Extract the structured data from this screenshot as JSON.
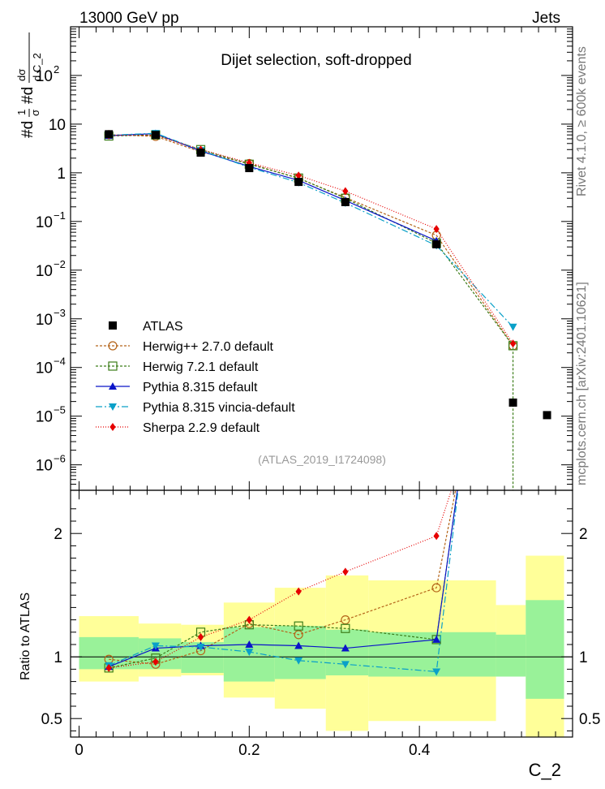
{
  "header": {
    "left": "13000 GeV pp",
    "right": "Jets",
    "side_top": "Rivet 4.1.0, ≥ 600k events",
    "side_bottom": "mcplots.cern.ch [arXiv:2401.10621]"
  },
  "chart_data": {
    "type": "line",
    "title": "Dijet selection, soft-dropped",
    "watermark": "(ATLAS_2019_I1724098)",
    "xlabel": "C_2",
    "ylabel": "#d¹⁄σ #d dσ⁄d C_2",
    "ratio_ylabel": "Ratio to ATLAS",
    "xlim": [
      -0.01,
      0.58
    ],
    "ylim": [
      3e-07,
      1000
    ],
    "ratio_ylim": [
      0.35,
      2.35
    ],
    "x_ticks": [
      0,
      0.2,
      0.4
    ],
    "x_tick_labels": [
      "0",
      "0.2",
      "0.4"
    ],
    "y_ticks": [
      {
        "v": 1e-06,
        "base": "10",
        "exp": "−6"
      },
      {
        "v": 1e-05,
        "base": "10",
        "exp": "−5"
      },
      {
        "v": 0.0001,
        "base": "10",
        "exp": "−4"
      },
      {
        "v": 0.001,
        "base": "10",
        "exp": "−3"
      },
      {
        "v": 0.01,
        "base": "10",
        "exp": "−2"
      },
      {
        "v": 0.1,
        "base": "10",
        "exp": "−1"
      },
      {
        "v": 1,
        "base": "1",
        "exp": ""
      },
      {
        "v": 10,
        "base": "10",
        "exp": ""
      },
      {
        "v": 100,
        "base": "10",
        "exp": "2"
      }
    ],
    "ratio_ticks": [
      {
        "v": 0.5,
        "label": "0.5"
      },
      {
        "v": 1,
        "label": "1"
      },
      {
        "v": 2,
        "label": "2"
      }
    ],
    "bins": [
      {
        "lo": 0.0,
        "hi": 0.07
      },
      {
        "lo": 0.07,
        "hi": 0.12
      },
      {
        "lo": 0.12,
        "hi": 0.17
      },
      {
        "lo": 0.17,
        "hi": 0.23
      },
      {
        "lo": 0.23,
        "hi": 0.29
      },
      {
        "lo": 0.29,
        "hi": 0.34
      },
      {
        "lo": 0.34,
        "hi": 0.49
      },
      {
        "lo": 0.49,
        "hi": 0.525
      },
      {
        "lo": 0.525,
        "hi": 0.57
      }
    ],
    "x": [
      0.035,
      0.09,
      0.143,
      0.2,
      0.258,
      0.313,
      0.42,
      0.51,
      0.55
    ],
    "data": {
      "name": "ATLAS",
      "values": [
        6.2,
        6.0,
        2.6,
        1.25,
        0.65,
        0.25,
        0.034,
        1.9e-05,
        1.05e-05
      ],
      "band_inner": [
        [
          0.9,
          1.16
        ],
        [
          0.9,
          1.15
        ],
        [
          0.87,
          1.12
        ],
        [
          0.8,
          1.24
        ],
        [
          0.82,
          1.25
        ],
        [
          0.85,
          1.22
        ],
        [
          0.84,
          1.2
        ],
        [
          0.84,
          1.18
        ],
        [
          0.66,
          1.46
        ]
      ],
      "band_outer": [
        [
          0.8,
          1.33
        ],
        [
          0.84,
          1.27
        ],
        [
          0.85,
          1.26
        ],
        [
          0.67,
          1.44
        ],
        [
          0.58,
          1.56
        ],
        [
          0.4,
          1.66
        ],
        [
          0.48,
          1.62
        ],
        [
          0.86,
          1.42
        ],
        [
          0.35,
          1.82
        ]
      ]
    },
    "series": [
      {
        "name": "Herwig++ 2.7.0 default",
        "color": "#b46419",
        "dash": "3,2",
        "marker": "circle-open",
        "x": [
          0.035,
          0.09,
          0.143,
          0.2,
          0.258,
          0.313,
          0.42,
          0.51
        ],
        "values": [
          6.1,
          5.6,
          2.7,
          1.55,
          0.77,
          0.31,
          0.052,
          0.00028
        ],
        "ratio": [
          0.98,
          0.94,
          1.05,
          1.27,
          1.18,
          1.3,
          1.56
        ]
      },
      {
        "name": "Herwig 7.2.1 default",
        "color": "#3c7d19",
        "dash": "3,2",
        "marker": "square-open",
        "x": [
          0.035,
          0.09,
          0.143,
          0.2,
          0.258,
          0.313,
          0.42,
          0.51,
          0.51
        ],
        "values": [
          5.7,
          6.0,
          3.0,
          1.5,
          0.78,
          0.3,
          0.036,
          0.00028,
          3e-07
        ],
        "ratio": [
          0.91,
          0.99,
          1.2,
          1.26,
          1.25,
          1.23,
          1.14
        ]
      },
      {
        "name": "Pythia 8.315 default",
        "color": "#0a14c8",
        "dash": "",
        "marker": "triangle-up",
        "x": [
          0.035,
          0.09,
          0.143,
          0.2,
          0.258,
          0.313,
          0.42
        ],
        "values": [
          5.8,
          6.4,
          2.8,
          1.35,
          0.7,
          0.27,
          0.04
        ],
        "ratio": [
          0.92,
          1.07,
          1.09,
          1.1,
          1.09,
          1.07,
          1.14
        ]
      },
      {
        "name": "Pythia 8.315 vincia-default",
        "color": "#0aa0c8",
        "dash": "8,3,2,3",
        "marker": "triangle-down",
        "x": [
          0.035,
          0.09,
          0.143,
          0.2,
          0.258,
          0.313,
          0.42,
          0.51
        ],
        "values": [
          5.9,
          6.5,
          2.9,
          1.3,
          0.63,
          0.24,
          0.032,
          0.00068
        ],
        "ratio": [
          0.93,
          1.09,
          1.08,
          1.04,
          0.97,
          0.94,
          0.88
        ]
      },
      {
        "name": "Sherpa 2.2.9 default",
        "color": "#e60000",
        "dash": "1,2",
        "marker": "diamond",
        "x": [
          0.035,
          0.09,
          0.143,
          0.2,
          0.258,
          0.313,
          0.42,
          0.51
        ],
        "values": [
          5.9,
          5.9,
          3.0,
          1.6,
          0.88,
          0.42,
          0.07,
          0.00031
        ],
        "ratio": [
          0.91,
          0.96,
          1.16,
          1.3,
          1.53,
          1.69,
          1.98
        ]
      }
    ]
  }
}
